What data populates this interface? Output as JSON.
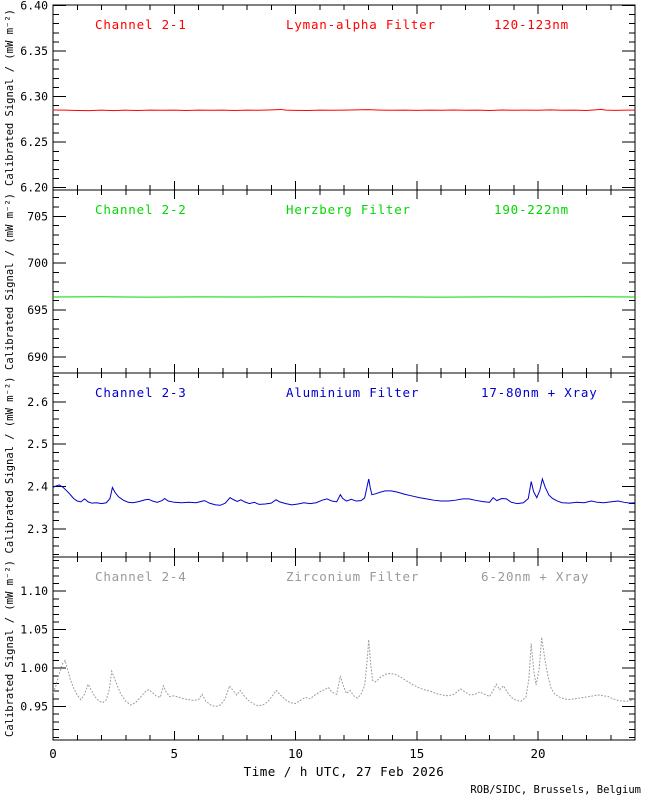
{
  "footer": {
    "x_title": "Time / h UTC, 27 Feb 2026",
    "credit": "ROB/SIDC, Brussels, Belgium"
  },
  "x_axis": {
    "range": [
      0,
      24
    ],
    "major_ticks": [
      0,
      5,
      10,
      15,
      20
    ],
    "tick_labels": [
      "0",
      "5",
      "10",
      "15",
      "20"
    ],
    "minor_step": 1
  },
  "chart_data": [
    {
      "type": "line",
      "channel": "Channel 2-1",
      "filter": "Lyman-alpha Filter",
      "band": "120-123nm",
      "color": "#ff0000",
      "ylabel": "Calibrated Signal / (mW m⁻²)",
      "ylim": [
        6.1975,
        6.4005
      ],
      "yticks": [
        6.2,
        6.25,
        6.3,
        6.35,
        6.4
      ],
      "ytick_labels": [
        "6.20",
        "6.25",
        "6.30",
        "6.35",
        "6.40"
      ],
      "minor_step": 0.01,
      "line_style": "solid",
      "points": [
        [
          0,
          6.2853
        ],
        [
          0.5,
          6.2851
        ],
        [
          1,
          6.2848
        ],
        [
          1.5,
          6.2846
        ],
        [
          2,
          6.2851
        ],
        [
          2.5,
          6.2846
        ],
        [
          3,
          6.2851
        ],
        [
          3.5,
          6.2848
        ],
        [
          4,
          6.2852
        ],
        [
          4.5,
          6.285
        ],
        [
          5,
          6.2852
        ],
        [
          5.5,
          6.2848
        ],
        [
          6,
          6.2851
        ],
        [
          6.5,
          6.285
        ],
        [
          7,
          6.2852
        ],
        [
          7.5,
          6.2847
        ],
        [
          8,
          6.2851
        ],
        [
          8.5,
          6.285
        ],
        [
          9,
          6.2854
        ],
        [
          9.4,
          6.2859
        ],
        [
          9.6,
          6.2851
        ],
        [
          10,
          6.2849
        ],
        [
          10.5,
          6.2847
        ],
        [
          11,
          6.2852
        ],
        [
          11.5,
          6.285
        ],
        [
          12,
          6.2851
        ],
        [
          12.5,
          6.2854
        ],
        [
          13,
          6.2857
        ],
        [
          13.5,
          6.2852
        ],
        [
          14,
          6.285
        ],
        [
          14.5,
          6.2852
        ],
        [
          15,
          6.2849
        ],
        [
          15.5,
          6.2851
        ],
        [
          16,
          6.285
        ],
        [
          16.5,
          6.2853
        ],
        [
          17,
          6.285
        ],
        [
          17.5,
          6.2852
        ],
        [
          18,
          6.2848
        ],
        [
          18.5,
          6.2853
        ],
        [
          19,
          6.285
        ],
        [
          19.5,
          6.2851
        ],
        [
          20,
          6.285
        ],
        [
          20.5,
          6.2854
        ],
        [
          21,
          6.285
        ],
        [
          21.5,
          6.2852
        ],
        [
          22,
          6.2848
        ],
        [
          22.4,
          6.2855
        ],
        [
          22.6,
          6.286
        ],
        [
          22.8,
          6.2851
        ],
        [
          23.2,
          6.2849
        ],
        [
          23.6,
          6.2852
        ],
        [
          24,
          6.2851
        ]
      ]
    },
    {
      "type": "line",
      "channel": "Channel 2-2",
      "filter": "Herzberg Filter",
      "band": "190-222nm",
      "color": "#00d800",
      "ylabel": "Calibrated Signal / (mW m⁻²)",
      "ylim": [
        688.3,
        707.8
      ],
      "yticks": [
        690,
        695,
        700,
        705
      ],
      "ytick_labels": [
        "690",
        "695",
        "700",
        "705"
      ],
      "minor_step": 1,
      "line_style": "solid",
      "points": [
        [
          0,
          696.4
        ],
        [
          2,
          696.42
        ],
        [
          4,
          696.39
        ],
        [
          6,
          696.41
        ],
        [
          8,
          696.4
        ],
        [
          10,
          696.42
        ],
        [
          12,
          696.4
        ],
        [
          14,
          696.41
        ],
        [
          16,
          696.39
        ],
        [
          18,
          696.41
        ],
        [
          20,
          696.4
        ],
        [
          22,
          696.42
        ],
        [
          24,
          696.4
        ]
      ]
    },
    {
      "type": "line",
      "channel": "Channel 2-3",
      "filter": "Aluminium Filter",
      "band": "17-80nm + Xray",
      "color": "#0000cc",
      "ylabel": "Calibrated Signal / (mW m⁻²)",
      "ylim": [
        2.234,
        2.668
      ],
      "yticks": [
        2.3,
        2.4,
        2.5,
        2.6
      ],
      "ytick_labels": [
        "2.3",
        "2.4",
        "2.5",
        "2.6"
      ],
      "minor_step": 0.02,
      "line_style": "solid",
      "points": [
        [
          0,
          2.398
        ],
        [
          0.1,
          2.401
        ],
        [
          0.25,
          2.404
        ],
        [
          0.4,
          2.399
        ],
        [
          0.55,
          2.391
        ],
        [
          0.7,
          2.382
        ],
        [
          0.85,
          2.372
        ],
        [
          1,
          2.366
        ],
        [
          1.15,
          2.364
        ],
        [
          1.3,
          2.371
        ],
        [
          1.45,
          2.364
        ],
        [
          1.6,
          2.361
        ],
        [
          1.8,
          2.362
        ],
        [
          2,
          2.36
        ],
        [
          2.2,
          2.362
        ],
        [
          2.35,
          2.372
        ],
        [
          2.45,
          2.398
        ],
        [
          2.55,
          2.387
        ],
        [
          2.7,
          2.376
        ],
        [
          2.9,
          2.368
        ],
        [
          3.1,
          2.363
        ],
        [
          3.3,
          2.362
        ],
        [
          3.55,
          2.365
        ],
        [
          3.8,
          2.369
        ],
        [
          3.95,
          2.37
        ],
        [
          4.1,
          2.366
        ],
        [
          4.3,
          2.363
        ],
        [
          4.5,
          2.367
        ],
        [
          4.6,
          2.372
        ],
        [
          4.75,
          2.366
        ],
        [
          5,
          2.363
        ],
        [
          5.3,
          2.362
        ],
        [
          5.6,
          2.363
        ],
        [
          5.9,
          2.362
        ],
        [
          6.1,
          2.365
        ],
        [
          6.25,
          2.367
        ],
        [
          6.45,
          2.361
        ],
        [
          6.7,
          2.357
        ],
        [
          6.9,
          2.356
        ],
        [
          7.1,
          2.361
        ],
        [
          7.3,
          2.374
        ],
        [
          7.45,
          2.369
        ],
        [
          7.6,
          2.365
        ],
        [
          7.75,
          2.369
        ],
        [
          7.9,
          2.364
        ],
        [
          8.1,
          2.36
        ],
        [
          8.3,
          2.363
        ],
        [
          8.5,
          2.358
        ],
        [
          8.75,
          2.359
        ],
        [
          9,
          2.361
        ],
        [
          9.2,
          2.369
        ],
        [
          9.35,
          2.364
        ],
        [
          9.6,
          2.36
        ],
        [
          9.85,
          2.357
        ],
        [
          10.1,
          2.359
        ],
        [
          10.35,
          2.362
        ],
        [
          10.6,
          2.36
        ],
        [
          10.85,
          2.362
        ],
        [
          11.1,
          2.368
        ],
        [
          11.3,
          2.371
        ],
        [
          11.5,
          2.366
        ],
        [
          11.7,
          2.364
        ],
        [
          11.85,
          2.381
        ],
        [
          11.95,
          2.372
        ],
        [
          12.1,
          2.366
        ],
        [
          12.3,
          2.37
        ],
        [
          12.5,
          2.366
        ],
        [
          12.7,
          2.367
        ],
        [
          12.85,
          2.373
        ],
        [
          12.97,
          2.405
        ],
        [
          13.02,
          2.418
        ],
        [
          13.08,
          2.398
        ],
        [
          13.15,
          2.381
        ],
        [
          13.3,
          2.383
        ],
        [
          13.5,
          2.387
        ],
        [
          13.7,
          2.39
        ],
        [
          13.95,
          2.39
        ],
        [
          14.2,
          2.387
        ],
        [
          14.5,
          2.382
        ],
        [
          14.8,
          2.378
        ],
        [
          15.1,
          2.374
        ],
        [
          15.4,
          2.371
        ],
        [
          15.7,
          2.368
        ],
        [
          16,
          2.366
        ],
        [
          16.3,
          2.366
        ],
        [
          16.6,
          2.368
        ],
        [
          16.9,
          2.371
        ],
        [
          17.15,
          2.371
        ],
        [
          17.4,
          2.368
        ],
        [
          17.7,
          2.365
        ],
        [
          18,
          2.363
        ],
        [
          18.15,
          2.374
        ],
        [
          18.3,
          2.367
        ],
        [
          18.5,
          2.372
        ],
        [
          18.7,
          2.371
        ],
        [
          18.9,
          2.363
        ],
        [
          19.15,
          2.36
        ],
        [
          19.4,
          2.362
        ],
        [
          19.6,
          2.372
        ],
        [
          19.72,
          2.412
        ],
        [
          19.82,
          2.388
        ],
        [
          19.95,
          2.374
        ],
        [
          20.08,
          2.392
        ],
        [
          20.18,
          2.418
        ],
        [
          20.3,
          2.398
        ],
        [
          20.45,
          2.38
        ],
        [
          20.6,
          2.372
        ],
        [
          20.8,
          2.366
        ],
        [
          21,
          2.362
        ],
        [
          21.3,
          2.361
        ],
        [
          21.6,
          2.363
        ],
        [
          21.9,
          2.362
        ],
        [
          22.2,
          2.366
        ],
        [
          22.45,
          2.363
        ],
        [
          22.7,
          2.362
        ],
        [
          23,
          2.364
        ],
        [
          23.3,
          2.366
        ],
        [
          23.55,
          2.363
        ],
        [
          23.8,
          2.361
        ],
        [
          24,
          2.362
        ]
      ]
    },
    {
      "type": "line",
      "channel": "Channel 2-4",
      "filter": "Zirconium Filter",
      "band": "6-20nm + Xray",
      "color": "#999999",
      "ylabel": "Calibrated Signal / (mW m⁻²)",
      "ylim": [
        0.9065,
        1.1445
      ],
      "yticks": [
        0.95,
        1.0,
        1.05,
        1.1
      ],
      "ytick_labels": [
        "0.95",
        "1.00",
        "1.05",
        "1.10"
      ],
      "minor_step": 0.01,
      "line_style": "dotted",
      "points": [
        [
          0,
          0.968
        ],
        [
          0.1,
          0.975
        ],
        [
          0.25,
          0.992
        ],
        [
          0.4,
          1.006
        ],
        [
          0.5,
          1.01
        ],
        [
          0.6,
          0.998
        ],
        [
          0.72,
          0.985
        ],
        [
          0.85,
          0.974
        ],
        [
          1,
          0.965
        ],
        [
          1.15,
          0.959
        ],
        [
          1.3,
          0.966
        ],
        [
          1.45,
          0.979
        ],
        [
          1.6,
          0.97
        ],
        [
          1.75,
          0.962
        ],
        [
          1.9,
          0.957
        ],
        [
          2.05,
          0.955
        ],
        [
          2.2,
          0.959
        ],
        [
          2.32,
          0.972
        ],
        [
          2.42,
          0.996
        ],
        [
          2.52,
          0.988
        ],
        [
          2.65,
          0.977
        ],
        [
          2.8,
          0.966
        ],
        [
          3,
          0.957
        ],
        [
          3.2,
          0.952
        ],
        [
          3.4,
          0.955
        ],
        [
          3.6,
          0.962
        ],
        [
          3.8,
          0.969
        ],
        [
          3.95,
          0.972
        ],
        [
          4.1,
          0.968
        ],
        [
          4.25,
          0.964
        ],
        [
          4.42,
          0.962
        ],
        [
          4.55,
          0.977
        ],
        [
          4.68,
          0.968
        ],
        [
          4.82,
          0.963
        ],
        [
          5,
          0.964
        ],
        [
          5.2,
          0.962
        ],
        [
          5.4,
          0.96
        ],
        [
          5.6,
          0.959
        ],
        [
          5.8,
          0.958
        ],
        [
          6,
          0.959
        ],
        [
          6.15,
          0.966
        ],
        [
          6.3,
          0.957
        ],
        [
          6.5,
          0.952
        ],
        [
          6.7,
          0.95
        ],
        [
          6.9,
          0.952
        ],
        [
          7.1,
          0.96
        ],
        [
          7.28,
          0.977
        ],
        [
          7.42,
          0.971
        ],
        [
          7.58,
          0.965
        ],
        [
          7.72,
          0.971
        ],
        [
          7.88,
          0.964
        ],
        [
          8.05,
          0.958
        ],
        [
          8.25,
          0.954
        ],
        [
          8.45,
          0.951
        ],
        [
          8.65,
          0.952
        ],
        [
          8.85,
          0.956
        ],
        [
          9.05,
          0.964
        ],
        [
          9.2,
          0.971
        ],
        [
          9.38,
          0.965
        ],
        [
          9.58,
          0.959
        ],
        [
          9.78,
          0.955
        ],
        [
          10,
          0.954
        ],
        [
          10.2,
          0.958
        ],
        [
          10.4,
          0.962
        ],
        [
          10.6,
          0.96
        ],
        [
          10.8,
          0.965
        ],
        [
          11,
          0.969
        ],
        [
          11.2,
          0.972
        ],
        [
          11.35,
          0.975
        ],
        [
          11.5,
          0.969
        ],
        [
          11.7,
          0.966
        ],
        [
          11.85,
          0.99
        ],
        [
          11.95,
          0.979
        ],
        [
          12.1,
          0.967
        ],
        [
          12.25,
          0.971
        ],
        [
          12.4,
          0.964
        ],
        [
          12.55,
          0.961
        ],
        [
          12.7,
          0.966
        ],
        [
          12.85,
          0.977
        ],
        [
          12.95,
          1.008
        ],
        [
          13.02,
          1.037
        ],
        [
          13.1,
          1.005
        ],
        [
          13.18,
          0.984
        ],
        [
          13.3,
          0.982
        ],
        [
          13.5,
          0.988
        ],
        [
          13.7,
          0.992
        ],
        [
          13.9,
          0.993
        ],
        [
          14.1,
          0.992
        ],
        [
          14.3,
          0.989
        ],
        [
          14.55,
          0.984
        ],
        [
          14.8,
          0.979
        ],
        [
          15.05,
          0.975
        ],
        [
          15.3,
          0.972
        ],
        [
          15.55,
          0.97
        ],
        [
          15.8,
          0.967
        ],
        [
          16.05,
          0.965
        ],
        [
          16.3,
          0.964
        ],
        [
          16.55,
          0.966
        ],
        [
          16.8,
          0.973
        ],
        [
          17,
          0.969
        ],
        [
          17.2,
          0.965
        ],
        [
          17.4,
          0.966
        ],
        [
          17.6,
          0.969
        ],
        [
          17.8,
          0.966
        ],
        [
          18,
          0.963
        ],
        [
          18.15,
          0.971
        ],
        [
          18.28,
          0.979
        ],
        [
          18.42,
          0.972
        ],
        [
          18.58,
          0.977
        ],
        [
          18.72,
          0.969
        ],
        [
          18.9,
          0.962
        ],
        [
          19.1,
          0.958
        ],
        [
          19.3,
          0.957
        ],
        [
          19.5,
          0.962
        ],
        [
          19.62,
          0.985
        ],
        [
          19.72,
          1.032
        ],
        [
          19.82,
          0.998
        ],
        [
          19.92,
          0.978
        ],
        [
          20.05,
          0.999
        ],
        [
          20.15,
          1.04
        ],
        [
          20.28,
          1.012
        ],
        [
          20.42,
          0.988
        ],
        [
          20.55,
          0.973
        ],
        [
          20.7,
          0.966
        ],
        [
          20.9,
          0.962
        ],
        [
          21.1,
          0.96
        ],
        [
          21.3,
          0.959
        ],
        [
          21.5,
          0.96
        ],
        [
          21.7,
          0.961
        ],
        [
          21.9,
          0.962
        ],
        [
          22.1,
          0.963
        ],
        [
          22.3,
          0.964
        ],
        [
          22.5,
          0.965
        ],
        [
          22.7,
          0.964
        ],
        [
          22.9,
          0.963
        ],
        [
          23.1,
          0.96
        ],
        [
          23.3,
          0.958
        ],
        [
          23.5,
          0.957
        ],
        [
          23.7,
          0.957
        ],
        [
          23.85,
          0.958
        ],
        [
          24,
          0.96
        ]
      ]
    }
  ]
}
